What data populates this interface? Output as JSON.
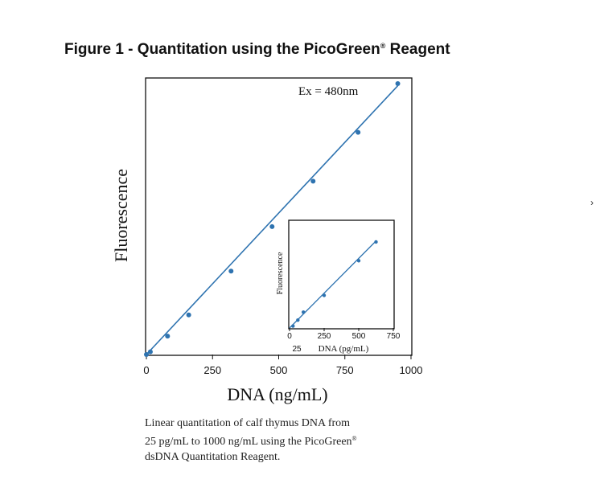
{
  "figure": {
    "title": "Figure 1 - Quantitation using the PicoGreen",
    "title_reg": "®",
    "title_end": " Reagent"
  },
  "caption": {
    "line1": "Linear quantitation of calf thymus DNA from",
    "line2": "25 pg/mL to 1000 ng/mL using the PicoGreen",
    "line2_reg": "®",
    "line3": "dsDNA Quantitation Reagent."
  },
  "edge_text": "›",
  "colors": {
    "series": "#2e73b0",
    "axis": "#111111",
    "text": "#111111"
  },
  "chart_data": [
    {
      "type": "scatter",
      "title": "",
      "xlabel": "DNA (ng/mL)",
      "ylabel": "Fluorescence",
      "annotation": "Ex = 480nm",
      "xlim": [
        0,
        1000
      ],
      "ylim": [
        0,
        1000
      ],
      "xticks": [
        0,
        250,
        500,
        750,
        1000
      ],
      "grid": false,
      "fit_line": {
        "x": [
          0,
          950
        ],
        "y": [
          0,
          992
        ]
      },
      "series": [
        {
          "x": [
            0,
            15,
            80,
            160,
            320,
            475,
            630,
            800,
            950
          ],
          "y": [
            0,
            10,
            68,
            146,
            308,
            472,
            640,
            820,
            1000
          ]
        }
      ]
    },
    {
      "type": "scatter",
      "title": "",
      "xlabel": "DNA (pg/mL)",
      "ylabel": "Fluorescence",
      "xlim": [
        0,
        750
      ],
      "ylim": [
        0,
        1000
      ],
      "xticks": [
        0,
        250,
        500,
        750
      ],
      "extra_tick": "25",
      "grid": false,
      "fit_line": {
        "x": [
          0,
          625
        ],
        "y": [
          0,
          880
        ]
      },
      "series": [
        {
          "x": [
            25,
            60,
            100,
            250,
            500,
            625
          ],
          "y": [
            20,
            80,
            160,
            330,
            680,
            870
          ]
        }
      ]
    }
  ]
}
